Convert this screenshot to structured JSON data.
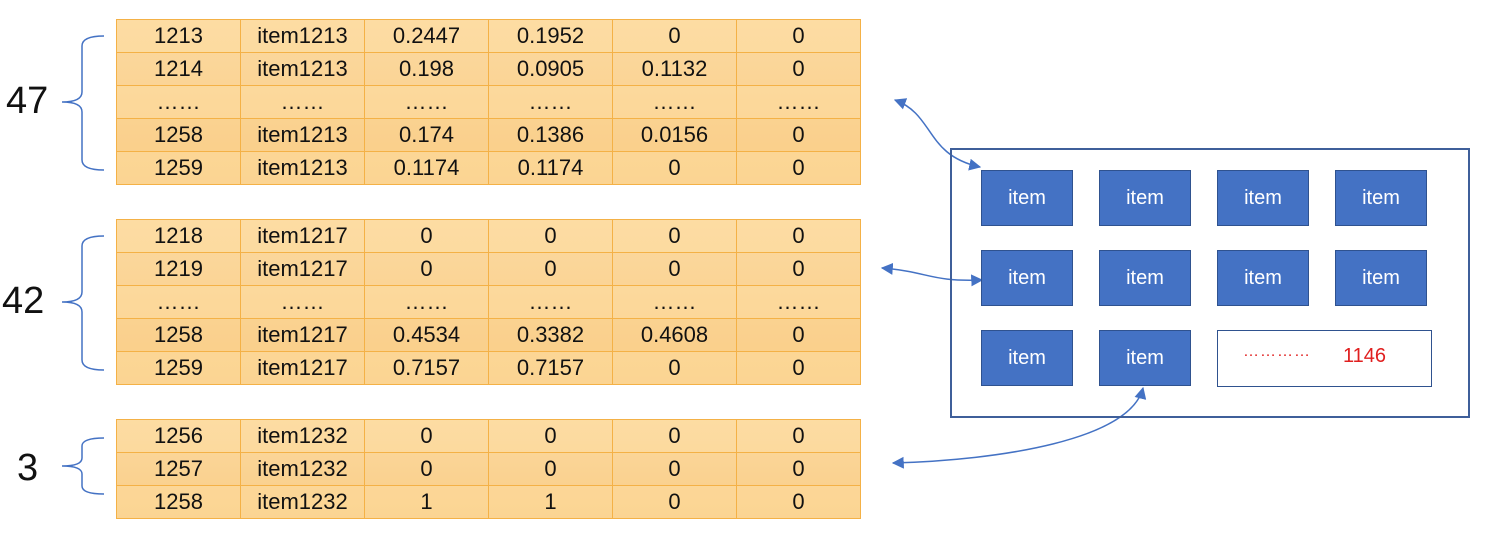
{
  "tables": [
    {
      "count": "47",
      "rows": [
        [
          "1213",
          "item1213",
          "0.2447",
          "0.1952",
          "0",
          "0"
        ],
        [
          "1214",
          "item1213",
          "0.198",
          "0.0905",
          "0.1132",
          "0"
        ],
        [
          "……",
          "……",
          "……",
          "……",
          "……",
          "……"
        ],
        [
          "1258",
          "item1213",
          "0.174",
          "0.1386",
          "0.0156",
          "0"
        ],
        [
          "1259",
          "item1213",
          "0.1174",
          "0.1174",
          "0",
          "0"
        ]
      ]
    },
    {
      "count": "42",
      "rows": [
        [
          "1218",
          "item1217",
          "0",
          "0",
          "0",
          "0"
        ],
        [
          "1219",
          "item1217",
          "0",
          "0",
          "0",
          "0"
        ],
        [
          "……",
          "……",
          "……",
          "……",
          "……",
          "……"
        ],
        [
          "1258",
          "item1217",
          "0.4534",
          "0.3382",
          "0.4608",
          "0"
        ],
        [
          "1259",
          "item1217",
          "0.7157",
          "0.7157",
          "0",
          "0"
        ]
      ]
    },
    {
      "count": "3",
      "rows": [
        [
          "1256",
          "item1232",
          "0",
          "0",
          "0",
          "0"
        ],
        [
          "1257",
          "item1232",
          "0",
          "0",
          "0",
          "0"
        ],
        [
          "1258",
          "item1232",
          "1",
          "1",
          "0",
          "0"
        ]
      ]
    }
  ],
  "panel": {
    "items": [
      "item",
      "item",
      "item",
      "item",
      "item",
      "item",
      "item",
      "item",
      "item",
      "item"
    ],
    "more_dots": "…………",
    "more_count": "1146"
  }
}
